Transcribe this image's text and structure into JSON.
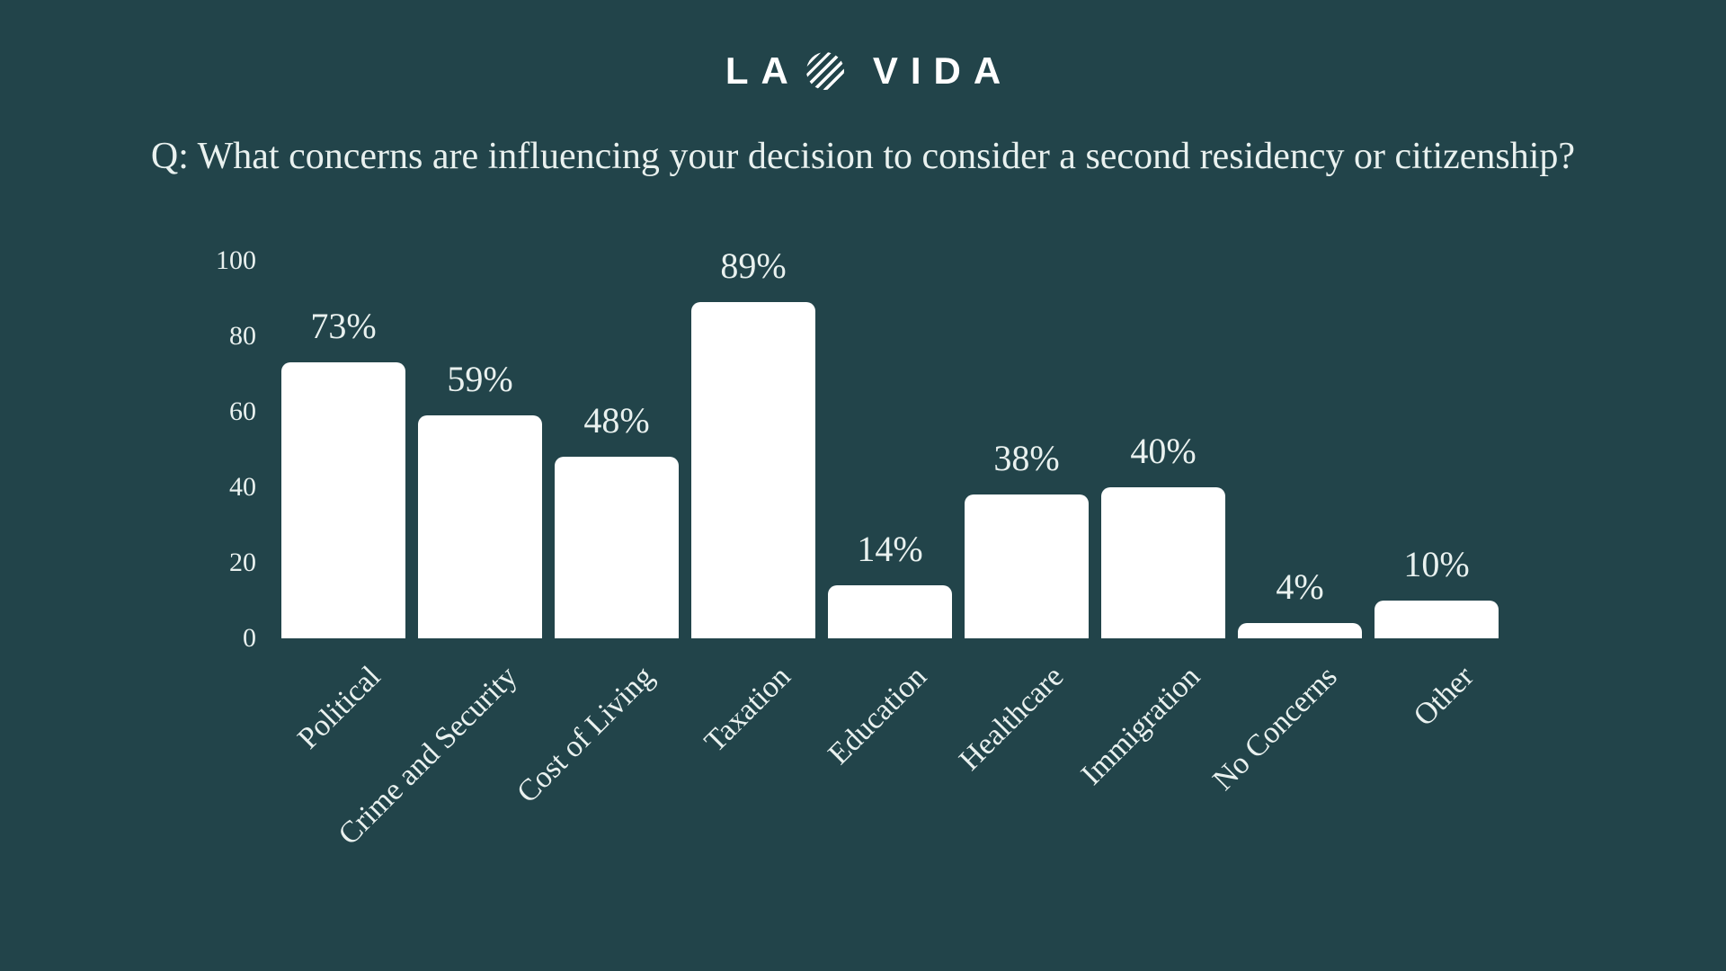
{
  "page": {
    "background_color": "#22444A",
    "text_color": "#E9F1EF",
    "bar_color": "#FFFFFF"
  },
  "logo": {
    "left_text": "LA",
    "right_text": "VIDA",
    "icon": "striped-globe-icon",
    "color": "#FFFFFF"
  },
  "chart_data": {
    "type": "bar",
    "title": "Q: What concerns are influencing your decision to consider a second residency or citizenship?",
    "categories": [
      "Political",
      "Crime and Security",
      "Cost of Living",
      "Taxation",
      "Education",
      "Healthcare",
      "Immigration",
      "No Concerns",
      "Other"
    ],
    "values": [
      73,
      59,
      48,
      89,
      14,
      38,
      40,
      4,
      10
    ],
    "value_labels": [
      "73%",
      "59%",
      "48%",
      "89%",
      "14%",
      "38%",
      "40%",
      "4%",
      "10%"
    ],
    "xlabel": "",
    "ylabel": "",
    "ylim": [
      0,
      100
    ],
    "yticks": [
      0,
      20,
      40,
      60,
      80,
      100
    ],
    "grid": false,
    "legend": null,
    "bar_color": "#FFFFFF",
    "category_label_rotation_deg": 45
  }
}
